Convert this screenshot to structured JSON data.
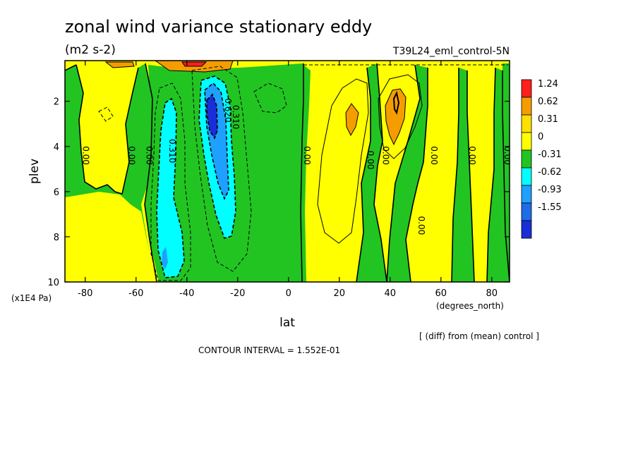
{
  "title": "zonal wind variance stationary eddy",
  "units": "(m2 s-2)",
  "run": "T39L24_eml_control-5N",
  "footnote": "[ (diff) from (mean) control ]",
  "contour_interval": "CONTOUR INTERVAL = 1.552E-01",
  "chart_data": {
    "type": "contour",
    "xlabel": "lat",
    "xunits": "(degrees_north)",
    "ylabel": "plev",
    "yunits": "(x1E4 Pa)",
    "xlim": [
      -88,
      87
    ],
    "ylim": [
      10,
      0.2
    ],
    "xticks": [
      -80,
      -60,
      -40,
      -20,
      0,
      20,
      40,
      60,
      80
    ],
    "xtick_labels": [
      "-80",
      "-60",
      "-40",
      "-20",
      "0",
      "20",
      "40",
      "60",
      "80"
    ],
    "yticks": [
      2,
      4,
      6,
      8,
      10
    ],
    "ytick_labels": [
      "2",
      "4",
      "6",
      "8",
      "10"
    ],
    "colorbar": {
      "labels": [
        "1.24",
        "0.62",
        "0.31",
        "0",
        "-0.31",
        "-0.62",
        "-0.93",
        "-1.55"
      ],
      "colors": [
        "#ff1f1f",
        "#f59d00",
        "#ffe000",
        "#ffff00",
        "#22c422",
        "#00ffff",
        "#1ea0ff",
        "#1e6ce6",
        "#1a2ed8"
      ]
    },
    "contour_labels": [
      {
        "text": "0.00",
        "x": -82,
        "y": 4.4
      },
      {
        "text": "0.00",
        "x": -64,
        "y": 4.4
      },
      {
        "text": "0.00",
        "x": -57,
        "y": 4.4
      },
      {
        "text": "0.310",
        "x": -48,
        "y": 4.2
      },
      {
        "text": "0.310",
        "x": -23,
        "y": 2.7
      },
      {
        "text": "0.620",
        "x": -26,
        "y": 2.4
      },
      {
        "text": "0.00",
        "x": 5,
        "y": 4.4
      },
      {
        "text": "0.00",
        "x": 30,
        "y": 4.6
      },
      {
        "text": "0.00",
        "x": 36,
        "y": 4.4
      },
      {
        "text": "0.00",
        "x": 55,
        "y": 4.4
      },
      {
        "text": "0.00",
        "x": 50,
        "y": 7.5
      },
      {
        "text": "0.00",
        "x": 70,
        "y": 4.4
      },
      {
        "text": "0.00",
        "x": 84,
        "y": 4.4
      }
    ],
    "features": [
      {
        "kind": "minimum",
        "x": -30,
        "y": 2.9,
        "value": -1.24
      },
      {
        "kind": "minimum",
        "x": -50,
        "y": 8.7,
        "value": -0.62
      },
      {
        "kind": "maximum",
        "x": 43,
        "y": 2.3,
        "value": 0.62
      },
      {
        "kind": "maximum",
        "x": 25,
        "y": 2.5,
        "value": 0.31
      }
    ]
  }
}
